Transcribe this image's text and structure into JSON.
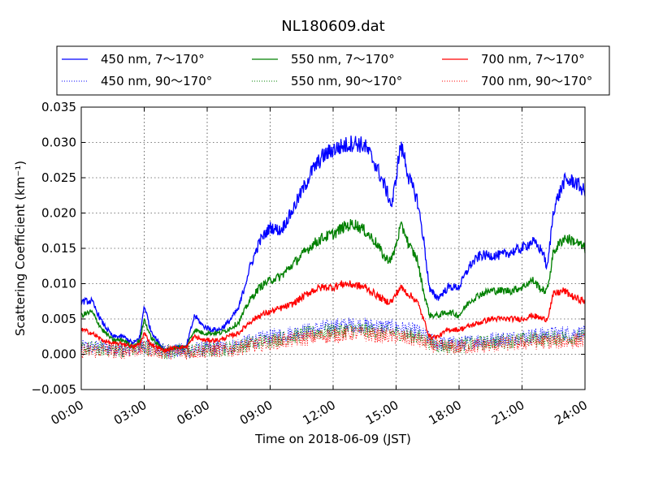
{
  "chart_data": {
    "type": "line",
    "title": "NL180609.dat",
    "xlabel": "Time on 2018-06-09 (JST)",
    "ylabel": "Scattering Coefficient (km⁻¹)",
    "xlim_hours": [
      0,
      24
    ],
    "ylim": [
      -0.005,
      0.035
    ],
    "x_ticks": [
      "00:00",
      "03:00",
      "06:00",
      "09:00",
      "12:00",
      "15:00",
      "18:00",
      "21:00",
      "24:00"
    ],
    "y_ticks": [
      "−0.005",
      "0.000",
      "0.005",
      "0.010",
      "0.015",
      "0.020",
      "0.025",
      "0.030",
      "0.035"
    ],
    "grid": true,
    "legend_position": "top",
    "colors": {
      "blue": "#0000ff",
      "green": "#008000",
      "red": "#ff0000"
    },
    "series": [
      {
        "name": "450 nm, 7～170°",
        "color": "#0000ff",
        "style": "solid",
        "x": [
          0,
          0.5,
          1,
          1.5,
          2,
          2.5,
          2.8,
          3,
          3.3,
          3.6,
          4,
          4.5,
          5,
          5.4,
          5.8,
          6.2,
          6.6,
          7,
          7.5,
          8,
          8.5,
          9,
          9.5,
          10,
          10.5,
          11,
          11.5,
          12,
          12.5,
          13,
          13.5,
          14,
          14.5,
          14.8,
          15,
          15.2,
          15.4,
          15.6,
          16,
          16.3,
          16.6,
          17,
          17.5,
          18,
          18.5,
          19,
          19.5,
          20,
          20.5,
          21,
          21.5,
          22,
          22.2,
          22.5,
          23,
          23.5,
          24
        ],
        "y": [
          0.0075,
          0.0075,
          0.0045,
          0.0025,
          0.0025,
          0.0015,
          0.0025,
          0.007,
          0.0035,
          0.002,
          0.0005,
          0.001,
          0.001,
          0.0055,
          0.004,
          0.0035,
          0.0035,
          0.0045,
          0.0065,
          0.012,
          0.016,
          0.018,
          0.0175,
          0.02,
          0.023,
          0.026,
          0.028,
          0.029,
          0.0295,
          0.03,
          0.0295,
          0.027,
          0.0235,
          0.021,
          0.025,
          0.0295,
          0.028,
          0.025,
          0.022,
          0.0165,
          0.009,
          0.008,
          0.0095,
          0.0095,
          0.0125,
          0.014,
          0.014,
          0.014,
          0.0145,
          0.015,
          0.016,
          0.0145,
          0.012,
          0.0205,
          0.0245,
          0.0245,
          0.023
        ]
      },
      {
        "name": "450 nm, 90～170°",
        "color": "#0000ff",
        "style": "dotted",
        "x": [
          0,
          1,
          2,
          3,
          4,
          5,
          6,
          7,
          8,
          9,
          10,
          11,
          12,
          13,
          14,
          15,
          16,
          17,
          18,
          19,
          20,
          21,
          22,
          23,
          24
        ],
        "y": [
          0.001,
          0.001,
          0.0008,
          0.0012,
          0.0005,
          0.0005,
          0.0008,
          0.001,
          0.0018,
          0.0025,
          0.003,
          0.0035,
          0.004,
          0.0042,
          0.004,
          0.0038,
          0.0032,
          0.0015,
          0.0015,
          0.002,
          0.0022,
          0.0025,
          0.0028,
          0.003,
          0.003
        ]
      },
      {
        "name": "550 nm, 7～170°",
        "color": "#008000",
        "style": "solid",
        "x": [
          0,
          0.5,
          1,
          1.5,
          2,
          2.5,
          2.8,
          3,
          3.3,
          3.6,
          4,
          4.5,
          5,
          5.4,
          5.8,
          6.2,
          6.6,
          7,
          7.5,
          8,
          8.5,
          9,
          9.5,
          10,
          10.5,
          11,
          11.5,
          12,
          12.5,
          13,
          13.5,
          14,
          14.5,
          14.8,
          15,
          15.2,
          15.4,
          15.6,
          16,
          16.3,
          16.6,
          17,
          17.5,
          18,
          18.5,
          19,
          19.5,
          20,
          20.5,
          21,
          21.5,
          22,
          22.2,
          22.5,
          23,
          23.5,
          24
        ],
        "y": [
          0.0055,
          0.006,
          0.0035,
          0.002,
          0.002,
          0.001,
          0.002,
          0.005,
          0.0025,
          0.0015,
          0.0005,
          0.001,
          0.001,
          0.0035,
          0.003,
          0.003,
          0.003,
          0.0035,
          0.0045,
          0.0075,
          0.0095,
          0.0105,
          0.011,
          0.0125,
          0.014,
          0.0155,
          0.0165,
          0.017,
          0.018,
          0.0185,
          0.0175,
          0.016,
          0.0135,
          0.0135,
          0.0155,
          0.018,
          0.0175,
          0.0155,
          0.0135,
          0.009,
          0.0055,
          0.0055,
          0.006,
          0.0055,
          0.0075,
          0.0085,
          0.009,
          0.009,
          0.009,
          0.0095,
          0.0105,
          0.009,
          0.009,
          0.0145,
          0.0165,
          0.016,
          0.015
        ]
      },
      {
        "name": "550 nm, 90～170°",
        "color": "#008000",
        "style": "dotted",
        "x": [
          0,
          1,
          2,
          3,
          4,
          5,
          6,
          7,
          8,
          9,
          10,
          11,
          12,
          13,
          14,
          15,
          16,
          17,
          18,
          19,
          20,
          21,
          22,
          23,
          24
        ],
        "y": [
          0.0008,
          0.0008,
          0.0006,
          0.001,
          0.0004,
          0.0004,
          0.0006,
          0.0008,
          0.0015,
          0.002,
          0.0025,
          0.003,
          0.0033,
          0.0035,
          0.0033,
          0.003,
          0.0025,
          0.0012,
          0.0012,
          0.0016,
          0.0018,
          0.002,
          0.0022,
          0.0024,
          0.0025
        ]
      },
      {
        "name": "700 nm, 7～170°",
        "color": "#ff0000",
        "style": "solid",
        "x": [
          0,
          0.5,
          1,
          1.5,
          2,
          2.5,
          2.8,
          3,
          3.3,
          3.6,
          4,
          4.5,
          5,
          5.4,
          5.8,
          6.2,
          6.6,
          7,
          7.5,
          8,
          8.5,
          9,
          9.5,
          10,
          10.5,
          11,
          11.5,
          12,
          12.5,
          13,
          13.5,
          14,
          14.5,
          14.8,
          15,
          15.2,
          15.4,
          15.6,
          16,
          16.3,
          16.6,
          17,
          17.5,
          18,
          18.5,
          19,
          19.5,
          20,
          20.5,
          21,
          21.5,
          22,
          22.2,
          22.5,
          23,
          23.5,
          24
        ],
        "y": [
          0.0035,
          0.003,
          0.002,
          0.0015,
          0.0015,
          0.001,
          0.0015,
          0.003,
          0.0015,
          0.001,
          0.0005,
          0.001,
          0.001,
          0.0025,
          0.002,
          0.002,
          0.002,
          0.0025,
          0.003,
          0.0045,
          0.0055,
          0.006,
          0.0065,
          0.007,
          0.008,
          0.009,
          0.0095,
          0.0095,
          0.01,
          0.0098,
          0.0095,
          0.0085,
          0.0075,
          0.0075,
          0.0085,
          0.0095,
          0.009,
          0.0085,
          0.0075,
          0.005,
          0.0025,
          0.0025,
          0.0035,
          0.0035,
          0.004,
          0.0045,
          0.005,
          0.005,
          0.005,
          0.005,
          0.0055,
          0.005,
          0.005,
          0.0085,
          0.009,
          0.008,
          0.0075
        ]
      },
      {
        "name": "700 nm, 90～170°",
        "color": "#ff0000",
        "style": "dotted",
        "x": [
          0,
          1,
          2,
          3,
          4,
          5,
          6,
          7,
          8,
          9,
          10,
          11,
          12,
          13,
          14,
          15,
          16,
          17,
          18,
          19,
          20,
          21,
          22,
          23,
          24
        ],
        "y": [
          0.0005,
          0.0005,
          0.0004,
          0.0008,
          0.0003,
          0.0003,
          0.0005,
          0.0006,
          0.0012,
          0.0016,
          0.002,
          0.0024,
          0.0027,
          0.003,
          0.0027,
          0.0025,
          0.002,
          0.001,
          0.001,
          0.0012,
          0.0014,
          0.0016,
          0.0018,
          0.0018,
          0.002
        ]
      }
    ]
  }
}
